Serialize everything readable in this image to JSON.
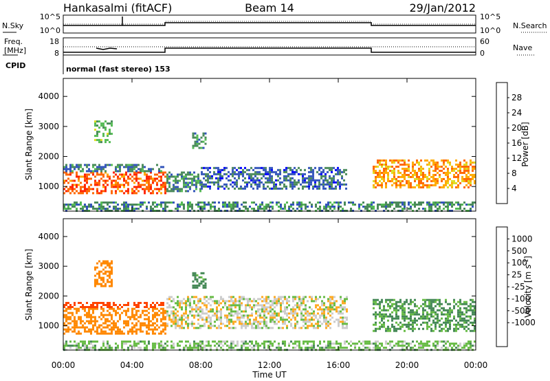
{
  "header": {
    "station": "Hankasalmi (fitACF)",
    "beam": "Beam 14",
    "date": "29/Jan/2012"
  },
  "strip": {
    "nsky_label": "N.Sky",
    "nsky_ticks": [
      "10^5",
      "10^0"
    ],
    "nsearch_label": "N.Search",
    "nsearch_ticks": [
      "10^5",
      "10^0"
    ],
    "freq_label_1": "Freq.",
    "freq_label_2": "[MHz]",
    "freq_ticks": [
      "18",
      "8"
    ],
    "nave_label": "Nave",
    "nave_ticks": [
      "60",
      "0"
    ],
    "cpid_label": "CPID",
    "cpid_text": "normal (fast stereo) 153"
  },
  "colors": {
    "power": [
      "#0000ff",
      "#3355bb",
      "#4a8a5a",
      "#55bb55",
      "#dddd22",
      "#ffaa00",
      "#ff6600",
      "#ff2200",
      "#dd0000"
    ],
    "velocity": [
      "#dd0000",
      "#ff4400",
      "#ff8800",
      "#ffaa22",
      "#cccccc",
      "#cccccc",
      "#66bb44",
      "#448855",
      "#3366bb",
      "#2233aa"
    ]
  },
  "chart_data": [
    {
      "type": "heatmap",
      "panel": "power",
      "xlabel": "",
      "ylabel": "Slant Range [km]",
      "x_ticks": [
        "00:00",
        "04:00",
        "08:00",
        "12:00",
        "16:00",
        "20:00",
        "00:00"
      ],
      "y_ticks": [
        1000,
        2000,
        3000,
        4000
      ],
      "xlim_hours": [
        0,
        24
      ],
      "ylim_km": [
        180,
        4600
      ],
      "colorbar": {
        "label": "Power [dB]",
        "ticks": [
          "4",
          "8",
          "12",
          "16",
          "20",
          "24",
          "28"
        ],
        "range_db": [
          0,
          32
        ]
      },
      "echo_regions": [
        {
          "t": [
            0,
            6
          ],
          "r": [
            800,
            1500
          ],
          "db": 27
        },
        {
          "t": [
            0,
            6
          ],
          "r": [
            1500,
            1750
          ],
          "db": 9
        },
        {
          "t": [
            1.8,
            2.8
          ],
          "r": [
            2500,
            3200
          ],
          "db": 14
        },
        {
          "t": [
            6,
            8
          ],
          "r": [
            850,
            1500
          ],
          "db": 10
        },
        {
          "t": [
            8,
            16.5
          ],
          "r": [
            950,
            1650
          ],
          "db": 7
        },
        {
          "t": [
            7.5,
            8.3
          ],
          "r": [
            2300,
            2800
          ],
          "db": 11
        },
        {
          "t": [
            18,
            24
          ],
          "r": [
            1000,
            1900
          ],
          "db": 23
        },
        {
          "t": [
            0,
            24
          ],
          "r": [
            200,
            500
          ],
          "db": 10
        }
      ]
    },
    {
      "type": "heatmap",
      "panel": "velocity",
      "xlabel": "Time UT",
      "ylabel": "Slant Range [km]",
      "x_ticks": [
        "00:00",
        "04:00",
        "08:00",
        "12:00",
        "16:00",
        "20:00",
        "00:00"
      ],
      "y_ticks": [
        1000,
        2000,
        3000,
        4000
      ],
      "xlim_hours": [
        0,
        24
      ],
      "ylim_km": [
        180,
        4600
      ],
      "colorbar": {
        "label": "Velocity [m s^-1]",
        "ticks": [
          "1000",
          "500",
          "100",
          "25",
          "-25",
          "-100",
          "-500",
          "-1000"
        ]
      },
      "echo_regions": [
        {
          "t": [
            0,
            6
          ],
          "r": [
            700,
            1600
          ],
          "v": -200
        },
        {
          "t": [
            0,
            6
          ],
          "r": [
            1600,
            1800
          ],
          "v": -600
        },
        {
          "t": [
            1.8,
            2.8
          ],
          "r": [
            2300,
            3200
          ],
          "v": -300
        },
        {
          "t": [
            6,
            16.5
          ],
          "r": [
            950,
            2000
          ],
          "v": 0
        },
        {
          "t": [
            7.5,
            8.3
          ],
          "r": [
            2300,
            2800
          ],
          "v": 150
        },
        {
          "t": [
            18,
            24
          ],
          "r": [
            800,
            1900
          ],
          "v": 120
        },
        {
          "t": [
            0,
            24
          ],
          "r": [
            200,
            500
          ],
          "v": 60
        }
      ]
    }
  ]
}
